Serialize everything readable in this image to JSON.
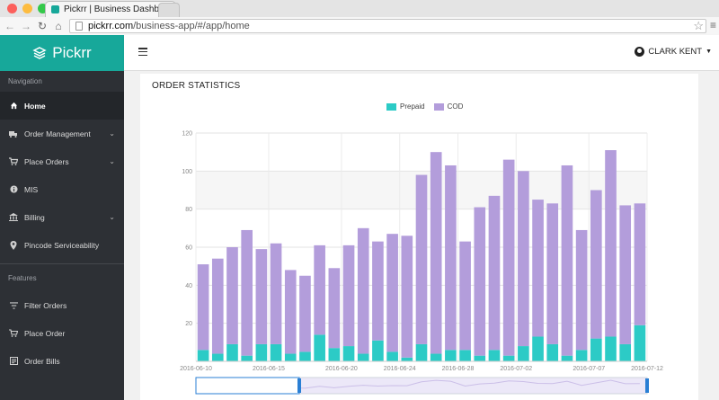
{
  "browser": {
    "tab_title": "Pickrr | Business Dashboard",
    "url_host": "pickrr.com",
    "url_path": "/business-app/#/app/home",
    "traffic_lights": [
      "#fc605c",
      "#fdbc40",
      "#34c84a"
    ]
  },
  "sidebar": {
    "brand": "Pickrr",
    "navigation_label": "Navigation",
    "navigation": [
      {
        "label": "Home",
        "icon": "home-icon",
        "active": true,
        "has_submenu": false
      },
      {
        "label": "Order Management",
        "icon": "truck-icon",
        "active": false,
        "has_submenu": true
      },
      {
        "label": "Place Orders",
        "icon": "cart-icon",
        "active": false,
        "has_submenu": true
      },
      {
        "label": "MIS",
        "icon": "info-icon",
        "active": false,
        "has_submenu": false
      },
      {
        "label": "Billing",
        "icon": "bank-icon",
        "active": false,
        "has_submenu": true
      },
      {
        "label": "Pincode Serviceability",
        "icon": "location-pin-icon",
        "active": false,
        "has_submenu": false
      }
    ],
    "features_label": "Features",
    "features": [
      {
        "label": "Filter Orders",
        "icon": "filter-icon"
      },
      {
        "label": "Place Order",
        "icon": "cart-plus-icon"
      },
      {
        "label": "Order Bills",
        "icon": "bill-icon"
      }
    ]
  },
  "header": {
    "user_name": "CLARK KENT"
  },
  "main": {
    "card_title": "ORDER STATISTICS"
  },
  "colors": {
    "brand": "#17a89a",
    "sidebar": "#2d3035",
    "prepaid": "#2ccbc6",
    "cod": "#b39ddb"
  },
  "chart_data": {
    "type": "bar",
    "stacked": true,
    "title": "",
    "xlabel": "",
    "ylabel": "",
    "ylim": [
      0,
      120
    ],
    "yticks": [
      20,
      40,
      60,
      80,
      100,
      120
    ],
    "grid": true,
    "legend_position": "top-center",
    "x_tick_labels": [
      "2016-06-10",
      "2016-06-15",
      "2016-06-20",
      "2016-06-24",
      "2016-06-28",
      "2016-07-02",
      "2016-07-07",
      "2016-07-12"
    ],
    "series": [
      {
        "name": "Prepaid",
        "color": "#2ccbc6",
        "values": [
          6,
          4,
          9,
          3,
          9,
          9,
          4,
          5,
          14,
          7,
          8,
          4,
          11,
          5,
          2,
          9,
          4,
          6,
          6,
          3,
          6,
          3,
          8,
          13,
          9,
          3,
          6,
          12,
          13,
          9,
          19
        ]
      },
      {
        "name": "COD",
        "color": "#b39ddb",
        "values": [
          45,
          50,
          51,
          66,
          50,
          53,
          44,
          40,
          47,
          42,
          53,
          66,
          52,
          62,
          64,
          89,
          106,
          97,
          57,
          78,
          81,
          103,
          92,
          72,
          74,
          100,
          63,
          78,
          98,
          73,
          64
        ]
      }
    ],
    "navigator": true
  }
}
